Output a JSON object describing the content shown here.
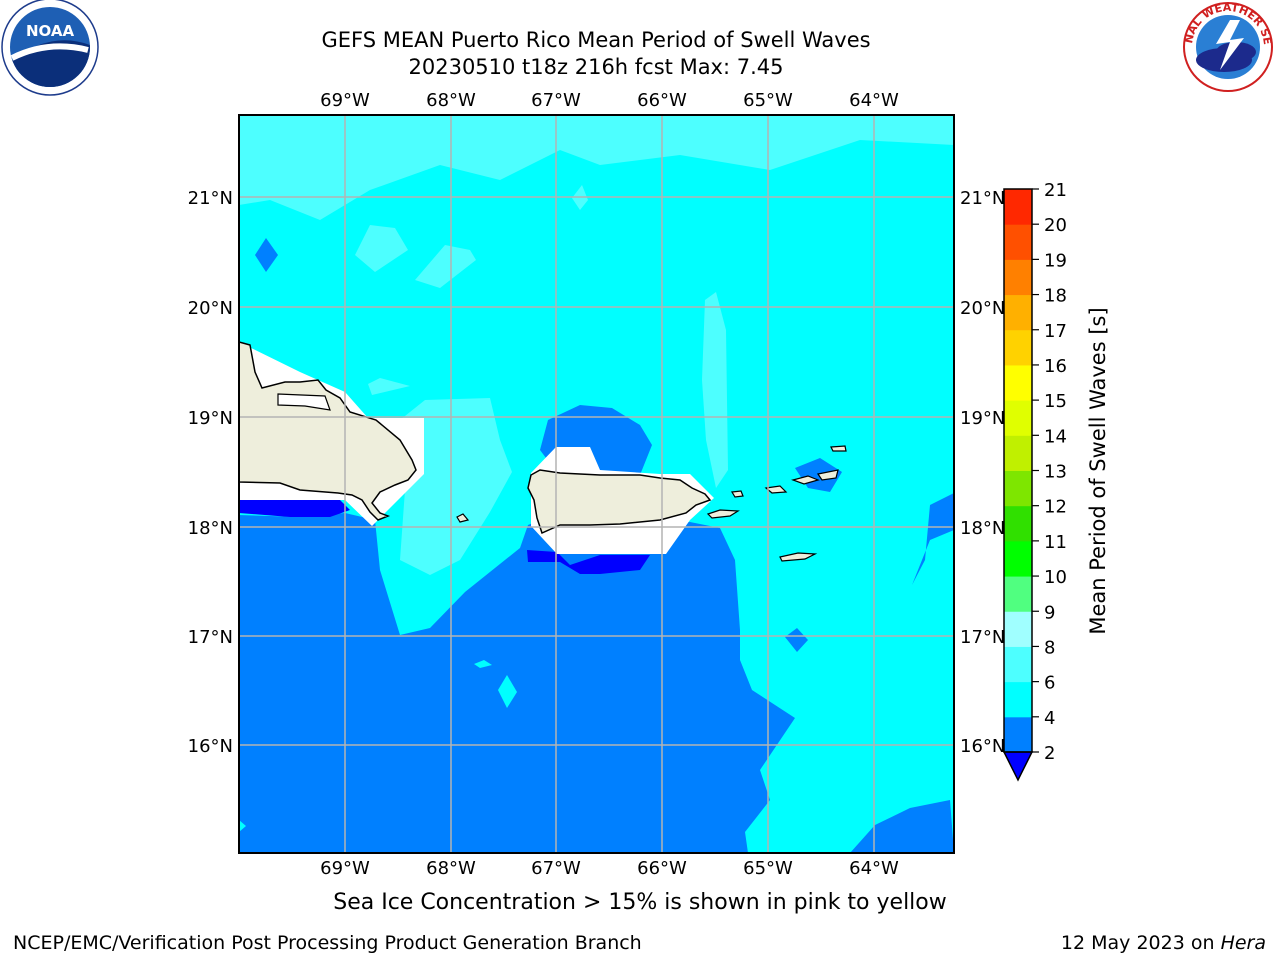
{
  "header": {
    "title_line1": "GEFS MEAN Puerto Rico Mean Period of Swell Waves",
    "title_line2": "20230510 t18z 216h fcst   Max: 7.45"
  },
  "logos": {
    "left": {
      "name": "NOAA",
      "ring_text": "NATIONAL OCEANIC AND ATMOSPHERIC ADMINISTRATION",
      "ring_text_bottom": "U.S. DEPARTMENT OF COMMERCE"
    },
    "right": {
      "ring_text": "NATIONAL WEATHER SERVICE"
    }
  },
  "map": {
    "lon_labels": [
      "69°W",
      "68°W",
      "67°W",
      "66°W",
      "65°W",
      "64°W"
    ],
    "lat_labels": [
      "21°N",
      "20°N",
      "19°N",
      "18°N",
      "17°N",
      "16°N"
    ],
    "colors": {
      "land": "#eeeedc",
      "band_2_4": "#0080ff",
      "band_4_6": "#00ffff",
      "band_6_8": "#4dffff",
      "band_8_9": "#80ffff",
      "band_lt_2": "#0000ff",
      "coast": "#000000",
      "grid": "#b4b4b4"
    }
  },
  "colorbar": {
    "title": "Mean Period of Swell Waves [s]",
    "labels": [
      "2",
      "4",
      "6",
      "8",
      "9",
      "10",
      "11",
      "12",
      "13",
      "14",
      "15",
      "16",
      "17",
      "18",
      "19",
      "20",
      "21"
    ],
    "colors": [
      "#0080ff",
      "#00ffff",
      "#4dffff",
      "#a0ffff",
      "#50ff80",
      "#00ff00",
      "#30e000",
      "#7ee600",
      "#c0f000",
      "#e0ff00",
      "#ffff00",
      "#ffd200",
      "#ffb000",
      "#ff8000",
      "#ff5000",
      "#ff2800",
      "#ff0000"
    ],
    "under_color": "#0000ff"
  },
  "chart_data": {
    "type": "heatmap",
    "title": "GEFS MEAN Puerto Rico Mean Period of Swell Waves",
    "subtitle": "20230510 t18z 216h fcst   Max: 7.45",
    "variable": "Mean Period of Swell Waves [s]",
    "max": 7.45,
    "levels": [
      2,
      4,
      6,
      8,
      9,
      10,
      11,
      12,
      13,
      14,
      15,
      16,
      17,
      18,
      19,
      20,
      21
    ],
    "xlim_lon": [
      -70.0,
      -63.25
    ],
    "ylim_lat": [
      15.0,
      21.75
    ],
    "grid": true
  },
  "footer": {
    "note": "Sea Ice Concentration > 15% is shown in pink to yellow",
    "left": "NCEP/EMC/Verification Post Processing Product Generation Branch",
    "right_date": "12 May 2023 on ",
    "right_host": "Hera"
  }
}
